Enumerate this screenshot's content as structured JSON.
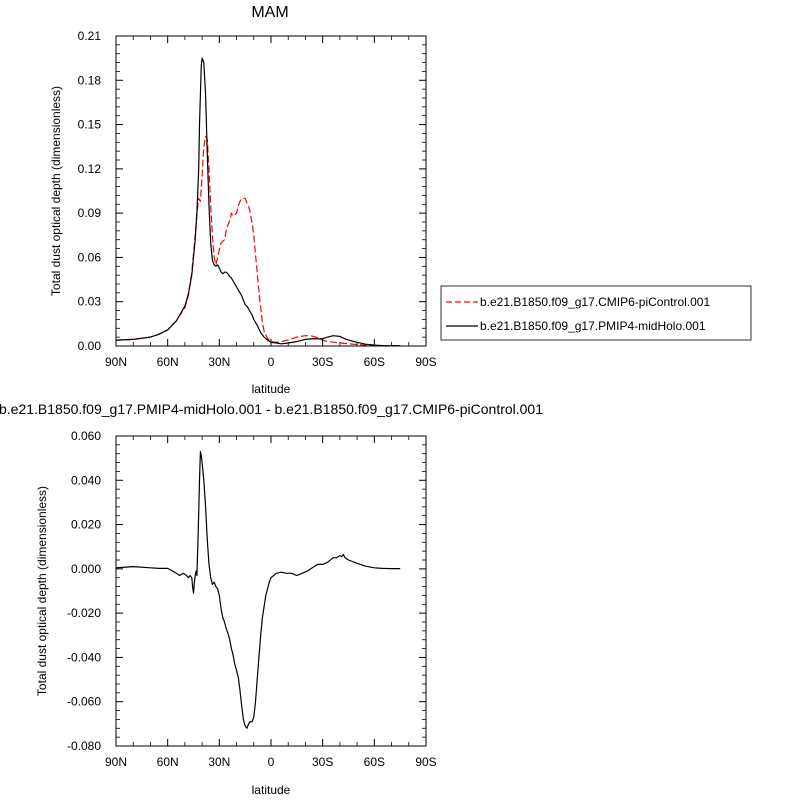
{
  "chart_data": [
    {
      "type": "line",
      "title": "MAM",
      "xlabel": "latitude",
      "ylabel": "Total dust optical depth (dimensionless)",
      "xlim": [
        90,
        -90
      ],
      "x_ticks": [
        90,
        60,
        30,
        0,
        -30,
        -60,
        -90
      ],
      "x_tick_labels": [
        "90N",
        "60N",
        "30N",
        "0",
        "30S",
        "60S",
        "90S"
      ],
      "ylim": [
        0,
        0.21
      ],
      "y_ticks": [
        0,
        0.03,
        0.06,
        0.09,
        0.12,
        0.15,
        0.18,
        0.21
      ],
      "y_tick_labels": [
        "0.00",
        "0.03",
        "0.06",
        "0.09",
        "0.12",
        "0.15",
        "0.18",
        "0.21"
      ],
      "grid": false,
      "legend": "right",
      "series": [
        {
          "name": "b.e21.B1850.f09_g17.CMIP6-piControl.001",
          "color": "#ff0000",
          "dash": "dashed",
          "x": [
            90,
            80,
            70,
            65,
            60,
            55,
            50,
            48,
            46,
            44,
            43,
            42,
            41,
            40,
            39,
            38,
            37,
            36,
            35,
            34,
            33,
            32,
            31,
            30,
            29,
            28,
            27,
            26,
            25,
            24,
            23,
            22,
            21,
            20,
            19,
            18,
            17,
            16,
            15,
            14,
            13,
            12,
            11,
            10,
            9,
            8,
            7,
            6,
            5,
            4,
            2,
            0,
            -3,
            -6,
            -10,
            -15,
            -20,
            -23,
            -26,
            -30,
            -33,
            -37,
            -40,
            -45,
            -50,
            -55,
            -60,
            -65,
            -70,
            -75
          ],
          "values": [
            0.004,
            0.0045,
            0.006,
            0.008,
            0.011,
            0.017,
            0.026,
            0.034,
            0.05,
            0.075,
            0.09,
            0.1,
            0.098,
            0.115,
            0.135,
            0.142,
            0.14,
            0.12,
            0.095,
            0.075,
            0.06,
            0.055,
            0.06,
            0.065,
            0.07,
            0.071,
            0.072,
            0.078,
            0.082,
            0.085,
            0.09,
            0.088,
            0.089,
            0.09,
            0.095,
            0.098,
            0.1,
            0.1,
            0.1,
            0.097,
            0.095,
            0.09,
            0.083,
            0.075,
            0.062,
            0.05,
            0.037,
            0.026,
            0.016,
            0.01,
            0.005,
            0.003,
            0.0025,
            0.003,
            0.004,
            0.006,
            0.007,
            0.007,
            0.006,
            0.004,
            0.003,
            0.0025,
            0.002,
            0.0015,
            0.001,
            0.0006,
            0.0004,
            0.0003,
            0.0002,
            0.0002
          ]
        },
        {
          "name": "b.e21.B1850.f09_g17.PMIP4-midHolo.001",
          "color": "#000000",
          "dash": "solid",
          "x": [
            90,
            80,
            70,
            65,
            60,
            55,
            50,
            48,
            46,
            45,
            44,
            43,
            42,
            41.5,
            41,
            40.5,
            40,
            39,
            38,
            37,
            36,
            35,
            34,
            33,
            32,
            31,
            30,
            29,
            28,
            27,
            26,
            25,
            24,
            23,
            22,
            21,
            20,
            19,
            18,
            17,
            16,
            15,
            14,
            13,
            12,
            11,
            10,
            8,
            6,
            4,
            2,
            0,
            -3,
            -6,
            -10,
            -15,
            -20,
            -25,
            -28,
            -30,
            -33,
            -36,
            -40,
            -43,
            -45,
            -50,
            -55,
            -60,
            -65,
            -70,
            -75
          ],
          "values": [
            0.004,
            0.0045,
            0.006,
            0.008,
            0.011,
            0.017,
            0.027,
            0.035,
            0.048,
            0.06,
            0.072,
            0.09,
            0.12,
            0.15,
            0.17,
            0.19,
            0.195,
            0.192,
            0.17,
            0.13,
            0.095,
            0.07,
            0.058,
            0.055,
            0.054,
            0.055,
            0.053,
            0.05,
            0.049,
            0.05,
            0.05,
            0.049,
            0.047,
            0.046,
            0.044,
            0.042,
            0.04,
            0.038,
            0.036,
            0.034,
            0.031,
            0.028,
            0.027,
            0.025,
            0.023,
            0.021,
            0.018,
            0.014,
            0.009,
            0.006,
            0.004,
            0.0025,
            0.002,
            0.0015,
            0.002,
            0.003,
            0.0045,
            0.005,
            0.0048,
            0.005,
            0.006,
            0.007,
            0.0065,
            0.0048,
            0.004,
            0.0025,
            0.0012,
            0.0006,
            0.0003,
            0.0002,
            0.0002
          ]
        }
      ]
    },
    {
      "type": "line",
      "title": "b.e21.B1850.f09_g17.PMIP4-midHolo.001 - b.e21.B1850.f09_g17.CMIP6-piControl.001",
      "xlabel": "latitude",
      "ylabel": "Total dust optical depth (dimensionless)",
      "xlim": [
        90,
        -90
      ],
      "x_ticks": [
        90,
        60,
        30,
        0,
        -30,
        -60,
        -90
      ],
      "x_tick_labels": [
        "90N",
        "60N",
        "30N",
        "0",
        "30S",
        "60S",
        "90S"
      ],
      "ylim": [
        -0.08,
        0.06
      ],
      "y_ticks": [
        -0.08,
        -0.06,
        -0.04,
        -0.02,
        0,
        0.02,
        0.04,
        0.06
      ],
      "y_tick_labels": [
        "-0.080",
        "-0.060",
        "-0.040",
        "-0.020",
        "0.000",
        "0.020",
        "0.040",
        "0.060"
      ],
      "grid": false,
      "series": [
        {
          "color": "#000000",
          "dash": "solid",
          "x": [
            90,
            80,
            70,
            65,
            60,
            57,
            55,
            53,
            51,
            49,
            48,
            47,
            46,
            45.5,
            45,
            44.5,
            44,
            43.5,
            43,
            42.5,
            42,
            41.5,
            41,
            40.5,
            40,
            39,
            38,
            37,
            36,
            35,
            34,
            33,
            32,
            31,
            30,
            29,
            28,
            27,
            26,
            25,
            24,
            23,
            22,
            21,
            20,
            19,
            18,
            17,
            16,
            15,
            14,
            13,
            12,
            11,
            10,
            9,
            8,
            7,
            6,
            5,
            3,
            1,
            0,
            -3,
            -6,
            -9,
            -12,
            -15,
            -18,
            -21,
            -24,
            -27,
            -30,
            -33,
            -36,
            -38,
            -40,
            -41,
            -42,
            -43,
            -45,
            -50,
            -55,
            -60,
            -65,
            -70,
            -75
          ],
          "values": [
            0.0005,
            0.001,
            0.0005,
            0.0002,
            0.0002,
            -0.001,
            -0.002,
            -0.003,
            -0.002,
            -0.003,
            -0.004,
            -0.003,
            -0.004,
            -0.008,
            -0.011,
            -0.006,
            -0.003,
            -0.001,
            -0.003,
            0.01,
            0.025,
            0.04,
            0.053,
            0.051,
            0.048,
            0.04,
            0.028,
            0.013,
            0.002,
            -0.004,
            -0.007,
            -0.006,
            -0.008,
            -0.009,
            -0.012,
            -0.018,
            -0.022,
            -0.024,
            -0.027,
            -0.029,
            -0.032,
            -0.036,
            -0.039,
            -0.043,
            -0.046,
            -0.049,
            -0.055,
            -0.062,
            -0.068,
            -0.071,
            -0.072,
            -0.07,
            -0.069,
            -0.069,
            -0.067,
            -0.06,
            -0.05,
            -0.04,
            -0.03,
            -0.022,
            -0.012,
            -0.006,
            -0.004,
            -0.002,
            -0.0015,
            -0.002,
            -0.002,
            -0.003,
            -0.002,
            -0.001,
            0.0005,
            0.002,
            0.002,
            0.003,
            0.005,
            0.005,
            0.006,
            0.0055,
            0.0065,
            0.005,
            0.004,
            0.0025,
            0.0012,
            0.0005,
            0.0002,
            0.0001,
            0.0001
          ]
        }
      ]
    }
  ]
}
